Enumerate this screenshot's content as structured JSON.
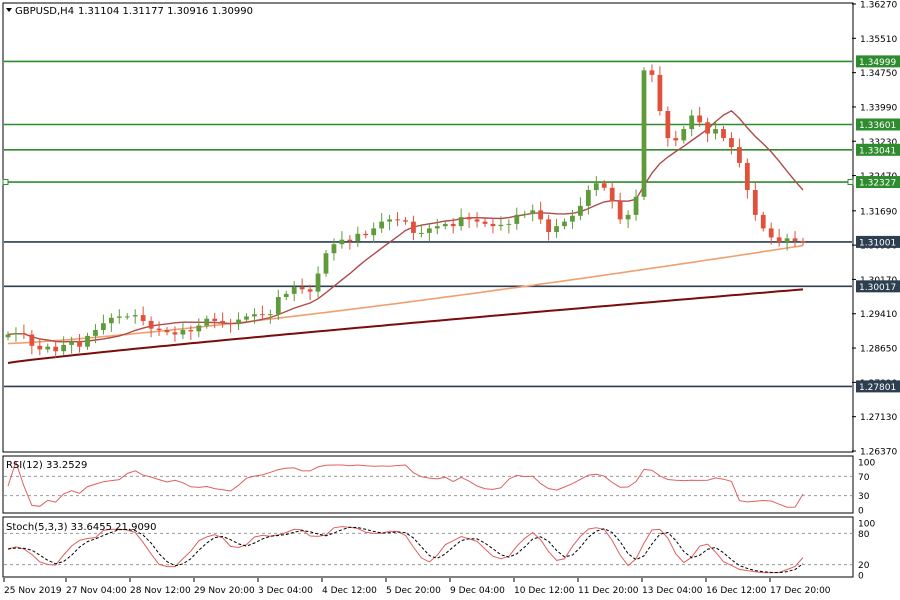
{
  "header": {
    "symbol": "GBPUSD,H4",
    "ohlc": "1.31104 1.31177 1.30916 1.30990"
  },
  "colors": {
    "bull": "#5f9a3b",
    "bear": "#e0503a",
    "resistance": "#2e8b2e",
    "support": "#2c3e50",
    "ma_fast": "#b04a4a",
    "ma_mid": "#f0a070",
    "ma_slow": "#7a0c0c",
    "osc": "#e06060",
    "signal": "#000000",
    "grid": "#cccccc"
  },
  "chart_data": [
    {
      "type": "candlestick",
      "title": "GBPUSD,H4",
      "ylim": [
        1.2637,
        1.3627
      ],
      "yticks": [
        "1.36270",
        "1.35510",
        "1.34750",
        "1.33990",
        "1.33230",
        "1.32470",
        "1.31690",
        "1.30930",
        "1.30170",
        "1.29410",
        "1.28650",
        "1.27890",
        "1.27130",
        "1.26370"
      ],
      "xticks": [
        "25 Nov 2019",
        "27 Nov 04:00",
        "28 Nov 12:00",
        "29 Nov 20:00",
        "3 Dec 04:00",
        "4 Dec 12:00",
        "5 Dec 20:00",
        "9 Dec 04:00",
        "10 Dec 12:00",
        "11 Dec 20:00",
        "13 Dec 04:00",
        "16 Dec 12:00",
        "17 Dec 20:00"
      ],
      "levels": [
        {
          "value": 1.34999,
          "label": "1.34999",
          "kind": "resistance"
        },
        {
          "value": 1.33601,
          "label": "1.33601",
          "kind": "resistance"
        },
        {
          "value": 1.33041,
          "label": "1.33041",
          "kind": "resistance"
        },
        {
          "value": 1.32327,
          "label": "1.32327",
          "kind": "resistance"
        },
        {
          "value": 1.31001,
          "label": "1.31001",
          "kind": "support"
        },
        {
          "value": 1.30017,
          "label": "1.30017",
          "kind": "support"
        },
        {
          "value": 1.27801,
          "label": "1.27801",
          "kind": "support"
        }
      ],
      "closes": [
        1.2895,
        1.2898,
        1.2895,
        1.287,
        1.2862,
        1.2868,
        1.2858,
        1.2872,
        1.288,
        1.2868,
        1.2892,
        1.2905,
        1.292,
        1.2932,
        1.2935,
        1.2935,
        1.2938,
        1.2925,
        1.2908,
        1.2905,
        1.29,
        1.2895,
        1.2905,
        1.2902,
        1.2915,
        1.293,
        1.2925,
        1.292,
        1.2918,
        1.2928,
        1.2935,
        1.294,
        1.2938,
        1.294,
        1.2978,
        1.2985,
        1.3,
        1.2995,
        1.299,
        1.303,
        1.3075,
        1.3095,
        1.3105,
        1.3102,
        1.3118,
        1.3115,
        1.313,
        1.3145,
        1.315,
        1.3148,
        1.3145,
        1.312,
        1.312,
        1.313,
        1.3135,
        1.314,
        1.3135,
        1.3155,
        1.315,
        1.3145,
        1.314,
        1.3135,
        1.3138,
        1.314,
        1.316,
        1.3162,
        1.317,
        1.315,
        1.3122,
        1.3135,
        1.3145,
        1.3158,
        1.318,
        1.3215,
        1.323,
        1.322,
        1.319,
        1.315,
        1.316,
        1.32,
        1.348,
        1.347,
        1.339,
        1.333,
        1.3325,
        1.335,
        1.338,
        1.3365,
        1.334,
        1.335,
        1.333,
        1.331,
        1.3275,
        1.3215,
        1.316,
        1.313,
        1.311,
        1.31,
        1.3108,
        1.3102,
        1.3099
      ],
      "ma_fast_end": 1.3215,
      "ma_mid_end": 1.3092,
      "ma_slow_end": 1.2995
    },
    {
      "type": "line",
      "title": "RSI(12) 33.2529",
      "ylim": [
        0,
        100
      ],
      "yticks": [
        "100",
        "70",
        "30",
        "0"
      ],
      "levels": [
        70,
        30
      ],
      "last": 33.2529
    },
    {
      "type": "line",
      "title": "Stoch(5,3,3) 33.6455 21.9090",
      "ylim": [
        0,
        100
      ],
      "yticks": [
        "100",
        "80",
        "20",
        "0"
      ],
      "levels": [
        80,
        20
      ],
      "main_last": 33.6455,
      "signal_last": 21.909
    }
  ]
}
